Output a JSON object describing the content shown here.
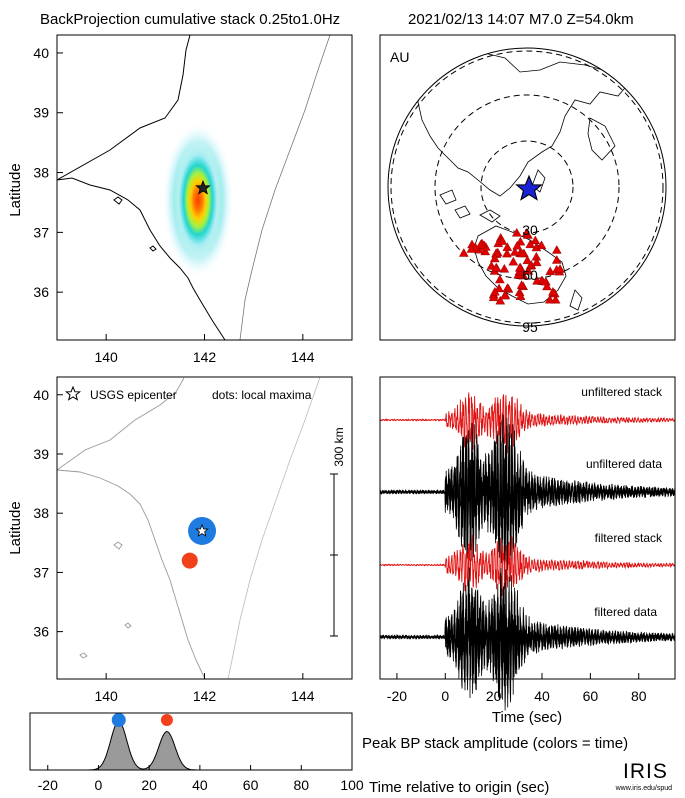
{
  "header": {
    "title": "BackProjection cumulative stack 0.25to1.0Hz",
    "event": "2021/02/13 14:07   M7.0  Z=54.0km"
  },
  "colors": {
    "axis": "#000000",
    "coast": "#000000",
    "epicenter_marker": "#1a22d6",
    "station_marker": "#e00000",
    "early_dot": "#1e7be0",
    "late_dot": "#f2401a",
    "stack_trace": "#e01010",
    "data_trace": "#000000",
    "bp_fill": "#9a9a9a"
  },
  "chart_data": [
    {
      "id": "bp-map",
      "type": "heatmap",
      "ylabel": "Latitude",
      "xlim": [
        139,
        145
      ],
      "ylim": [
        35.2,
        40.3
      ],
      "xticks": [
        140,
        142,
        144
      ],
      "yticks": [
        36,
        37,
        38,
        39,
        40
      ],
      "energy_peak": {
        "lon": 141.9,
        "lat": 37.55
      },
      "epicenter": {
        "lon": 141.95,
        "lat": 37.7
      }
    },
    {
      "id": "station-globe",
      "type": "scatter",
      "network": "AU",
      "distance_rings_deg": [
        30,
        60,
        95
      ],
      "epicenter": "star"
    },
    {
      "id": "maxima-map",
      "type": "scatter",
      "ylabel": "Latitude",
      "xlim": [
        139,
        145
      ],
      "ylim": [
        35.2,
        40.3
      ],
      "xticks": [
        140,
        142,
        144
      ],
      "yticks": [
        36,
        37,
        38,
        39,
        40
      ],
      "legend_epicenter": "USGS epicenter",
      "legend_dots": "dots: local maxima",
      "scale_label": "300 km",
      "epicenter": {
        "lon": 141.95,
        "lat": 37.7
      },
      "maxima": [
        {
          "lon": 141.95,
          "lat": 37.7,
          "time": 8
        },
        {
          "lon": 141.7,
          "lat": 37.2,
          "time": 28
        }
      ]
    },
    {
      "id": "traces",
      "type": "line",
      "xlabel": "Time (sec)",
      "xlim": [
        -27,
        95
      ],
      "xticks": [
        -20,
        0,
        20,
        40,
        60,
        80
      ],
      "series": [
        {
          "name": "unfiltered stack",
          "kind": "stack"
        },
        {
          "name": "unfiltered data",
          "kind": "data"
        },
        {
          "name": "filtered stack",
          "kind": "stack"
        },
        {
          "name": "filtered data",
          "kind": "data"
        }
      ]
    },
    {
      "id": "bp-amplitude",
      "type": "area",
      "title": "Peak BP stack amplitude (colors = time)",
      "xlabel": "Time relative to origin (sec)",
      "xlim": [
        -27,
        100
      ],
      "xticks": [
        -20,
        0,
        20,
        40,
        60,
        80,
        100
      ],
      "peaks": [
        {
          "time": 8,
          "amp": 0.95
        },
        {
          "time": 27,
          "amp": 0.75
        }
      ]
    }
  ],
  "footer": {
    "logo": "IRIS",
    "url": "www.iris.edu/spud"
  }
}
